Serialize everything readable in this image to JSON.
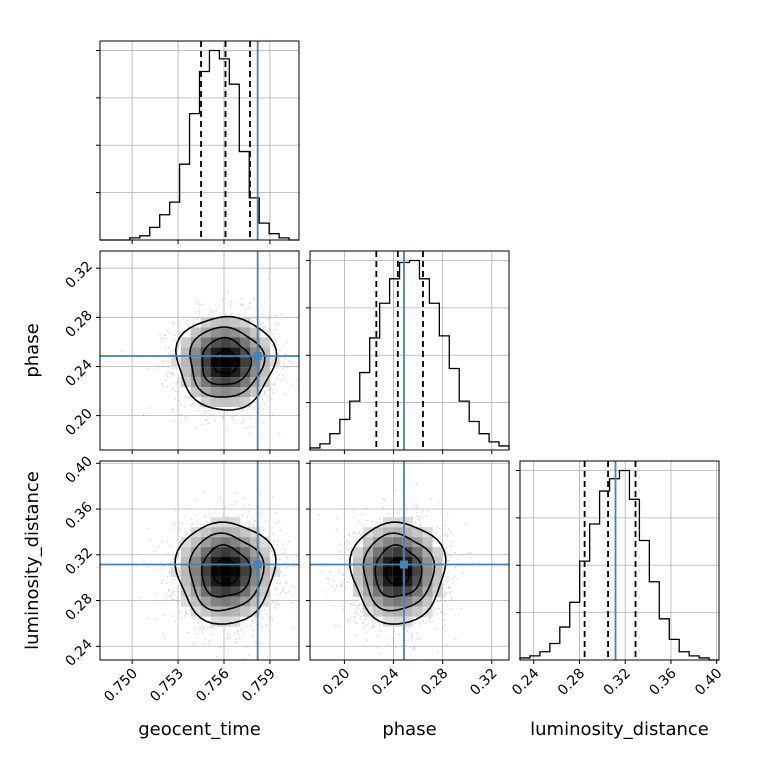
{
  "chart_data": {
    "type": "corner",
    "parameters": [
      "geocent_time",
      "phase",
      "luminosity_distance"
    ],
    "truths": [
      0.7582,
      0.2485,
      0.3115
    ],
    "quantiles": [
      [
        0.7545,
        0.7561,
        0.7577
      ],
      [
        0.226,
        0.2435,
        0.264
      ],
      [
        0.2845,
        0.305,
        0.329
      ]
    ],
    "ranges": [
      [
        0.7479,
        0.7609
      ],
      [
        0.172,
        0.334
      ],
      [
        0.228,
        0.402
      ]
    ],
    "ticks": [
      {
        "values": [
          0.75,
          0.753,
          0.756,
          0.759
        ],
        "labels": [
          "0.750",
          "0.753",
          "0.756",
          "0.759"
        ]
      },
      {
        "values": [
          0.2,
          0.24,
          0.28,
          0.32
        ],
        "labels": [
          "0.20",
          "0.24",
          "0.28",
          "0.32"
        ]
      },
      {
        "values": [
          0.24,
          0.28,
          0.32,
          0.36,
          0.4
        ],
        "labels": [
          "0.24",
          "0.28",
          "0.32",
          "0.36",
          "0.40"
        ]
      }
    ],
    "histograms": [
      {
        "edges": [
          0.7479,
          0.7609
        ],
        "counts": [
          0,
          0,
          0,
          1,
          2,
          6,
          12,
          18,
          36,
          60,
          80,
          90,
          86,
          74,
          42,
          20,
          8,
          3,
          1,
          0
        ]
      },
      {
        "edges": [
          0.172,
          0.334
        ],
        "counts": [
          1,
          3,
          8,
          15,
          24,
          38,
          55,
          72,
          84,
          92,
          93,
          84,
          72,
          56,
          40,
          24,
          14,
          8,
          4,
          2
        ]
      },
      {
        "edges": [
          0.228,
          0.402
        ],
        "counts": [
          1,
          2,
          4,
          8,
          16,
          28,
          48,
          66,
          82,
          88,
          92,
          78,
          58,
          38,
          20,
          10,
          4,
          2,
          1,
          0
        ]
      }
    ],
    "grid": true,
    "truth_color": "#4682b4",
    "line_color": "#000000",
    "grid_color": "#b0b0b0"
  }
}
